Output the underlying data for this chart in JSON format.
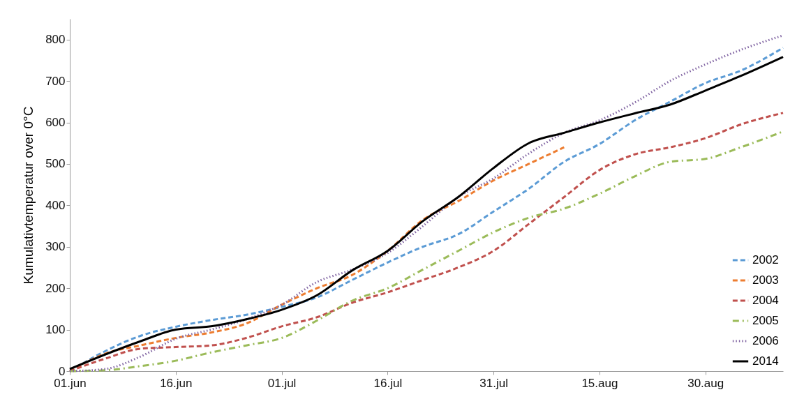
{
  "chart_data": {
    "type": "line",
    "ylabel": "Kumulativtemperatur over 0°C",
    "x": [
      "--06-01",
      "--06-06",
      "--06-11",
      "--06-16",
      "--06-21",
      "--06-26",
      "--07-01",
      "--07-06",
      "--07-11",
      "--07-16",
      "--07-21",
      "--07-26",
      "--07-31",
      "--08-05",
      "--08-10",
      "--08-15",
      "--08-20",
      "--08-25",
      "--08-30",
      "--09-04",
      "--09-10"
    ],
    "xlim": [
      "--06-01",
      "--09-10"
    ],
    "xticks": [
      {
        "value": "--06-01",
        "label": "01.jun"
      },
      {
        "value": "--06-16",
        "label": "16.jun"
      },
      {
        "value": "--07-01",
        "label": "01.jul"
      },
      {
        "value": "--07-16",
        "label": "16.jul"
      },
      {
        "value": "--07-31",
        "label": "31.jul"
      },
      {
        "value": "--08-15",
        "label": "15.aug"
      },
      {
        "value": "--08-30",
        "label": "30.aug"
      }
    ],
    "ylim": [
      0,
      850
    ],
    "yticks": [
      0,
      100,
      200,
      300,
      400,
      500,
      600,
      700,
      800
    ],
    "grid": false,
    "legend": "bottom right",
    "series": [
      {
        "name": "2002",
        "color": "#5b9bd5",
        "line_style": "dashed",
        "values": [
          0,
          48,
          85,
          107,
          123,
          136,
          155,
          178,
          220,
          262,
          300,
          330,
          385,
          440,
          505,
          548,
          605,
          650,
          695,
          725,
          780
        ]
      },
      {
        "name": "2003",
        "color": "#ed7d31",
        "line_style": "dashed",
        "values": [
          0,
          42,
          62,
          80,
          93,
          115,
          160,
          200,
          232,
          290,
          365,
          410,
          460,
          500,
          540,
          null,
          null,
          null,
          null,
          null,
          null
        ]
      },
      {
        "name": "2004",
        "color": "#c0504d",
        "line_style": "dashed",
        "values": [
          0,
          30,
          54,
          58,
          62,
          80,
          108,
          130,
          165,
          190,
          220,
          250,
          290,
          355,
          420,
          485,
          523,
          540,
          562,
          595,
          623
        ]
      },
      {
        "name": "2005",
        "color": "#9bbb59",
        "line_style": "dashdot",
        "values": [
          0,
          2,
          12,
          25,
          45,
          62,
          80,
          122,
          170,
          200,
          245,
          290,
          335,
          370,
          392,
          428,
          470,
          505,
          512,
          540,
          578
        ]
      },
      {
        "name": "2006",
        "color": "#8064a2",
        "line_style": "dotted",
        "values": [
          0,
          5,
          35,
          78,
          100,
          125,
          160,
          215,
          245,
          285,
          350,
          420,
          465,
          525,
          575,
          605,
          648,
          700,
          740,
          775,
          810
        ]
      },
      {
        "name": "2014",
        "color": "#000000",
        "line_style": "solid",
        "values": [
          5,
          40,
          72,
          100,
          108,
          125,
          148,
          183,
          243,
          290,
          362,
          420,
          490,
          550,
          575,
          600,
          622,
          643,
          677,
          712,
          758
        ]
      }
    ]
  }
}
